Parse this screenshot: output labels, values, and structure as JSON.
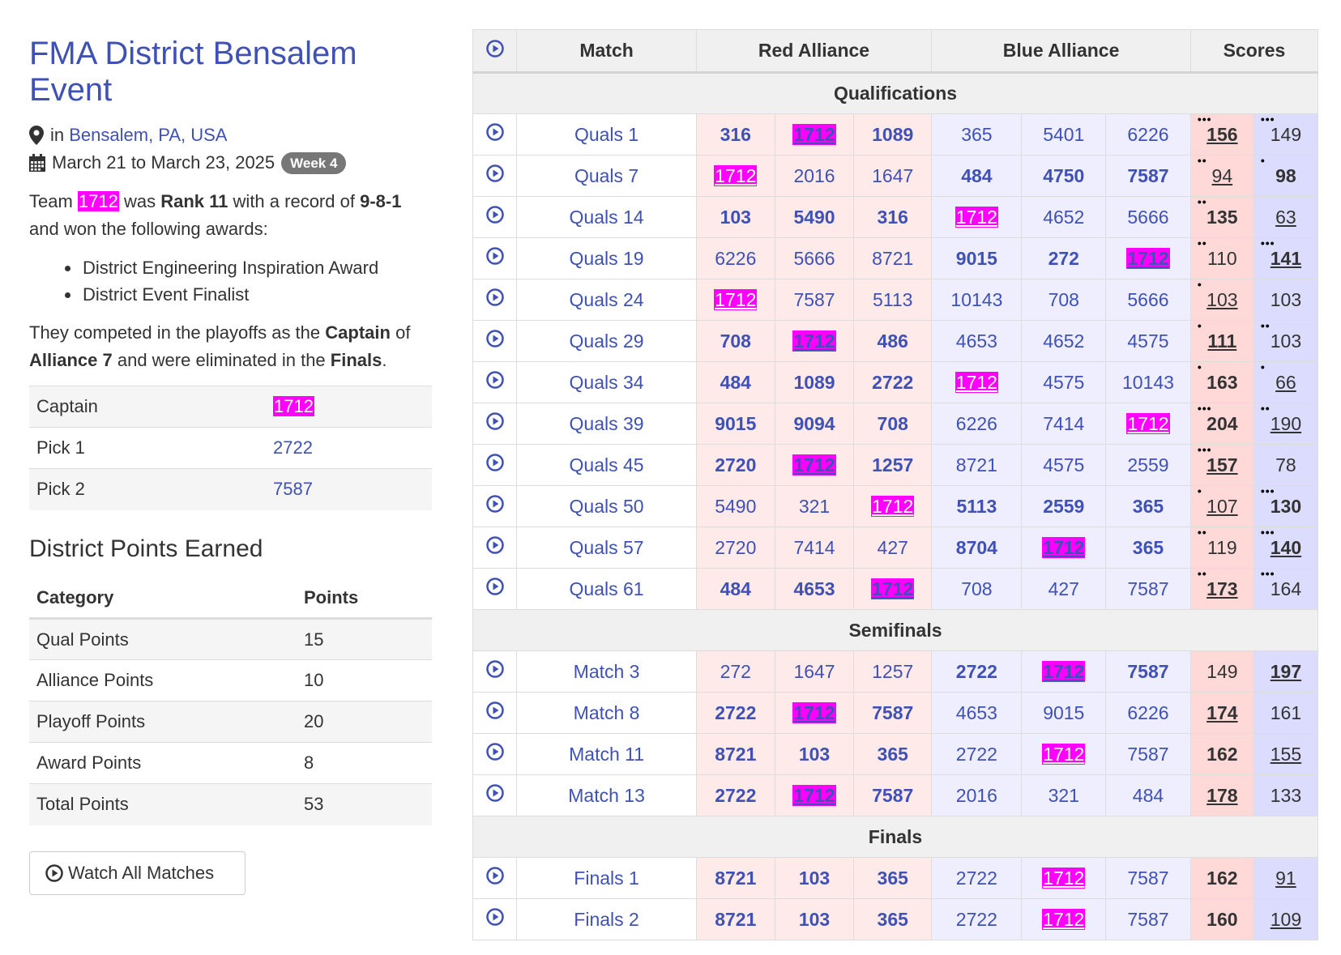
{
  "event": {
    "title": "FMA District Bensalem Event",
    "location_prefix": "in",
    "location": "Bensalem, PA, USA",
    "dates": "March 21 to March 23, 2025",
    "week_badge": "Week 4"
  },
  "summary": {
    "team_prefix": "Team",
    "team": "1712",
    "was": "was",
    "rank": "Rank 11",
    "record_prefix": "with a record of",
    "record": "9-8-1",
    "awards_intro": "and won the following awards:",
    "awards": [
      "District Engineering Inspiration Award",
      "District Event Finalist"
    ],
    "playoff_1": "They competed in the playoffs as the",
    "playoff_role": "Captain",
    "playoff_2": "of",
    "playoff_alliance": "Alliance 7",
    "playoff_3": "and were eliminated in the",
    "playoff_stage": "Finals",
    "playoff_end": "."
  },
  "alliance": [
    {
      "role": "Captain",
      "team": "1712",
      "highlight": true
    },
    {
      "role": "Pick 1",
      "team": "2722",
      "highlight": false
    },
    {
      "role": "Pick 2",
      "team": "7587",
      "highlight": false
    }
  ],
  "district_points": {
    "heading": "District Points Earned",
    "col_category": "Category",
    "col_points": "Points",
    "rows": [
      {
        "category": "Qual Points",
        "points": "15",
        "bold": false
      },
      {
        "category": "Alliance Points",
        "points": "10",
        "bold": false
      },
      {
        "category": "Playoff Points",
        "points": "20",
        "bold": false
      },
      {
        "category": "Award Points",
        "points": "8",
        "bold": false
      },
      {
        "category": "Total Points",
        "points": "53",
        "bold": true
      }
    ]
  },
  "watch_all_label": "Watch All Matches",
  "table_headers": {
    "match": "Match",
    "red": "Red Alliance",
    "blue": "Blue Alliance",
    "scores": "Scores"
  },
  "highlight_team": "1712",
  "sections": [
    {
      "name": "Qualifications",
      "matches": [
        {
          "name": "Quals 1",
          "red": [
            "316",
            "1712",
            "1089"
          ],
          "blue": [
            "365",
            "5401",
            "6226"
          ],
          "red_score": "156",
          "blue_score": "149",
          "winner": "red",
          "red_dots": 3,
          "blue_dots": 3
        },
        {
          "name": "Quals 7",
          "red": [
            "1712",
            "2016",
            "1647"
          ],
          "blue": [
            "484",
            "4750",
            "7587"
          ],
          "red_score": "94",
          "blue_score": "98",
          "winner": "blue",
          "red_dots": 2,
          "blue_dots": 1
        },
        {
          "name": "Quals 14",
          "red": [
            "103",
            "5490",
            "316"
          ],
          "blue": [
            "1712",
            "4652",
            "5666"
          ],
          "red_score": "135",
          "blue_score": "63",
          "winner": "red",
          "red_dots": 2,
          "blue_dots": 0
        },
        {
          "name": "Quals 19",
          "red": [
            "6226",
            "5666",
            "8721"
          ],
          "blue": [
            "9015",
            "272",
            "1712"
          ],
          "red_score": "110",
          "blue_score": "141",
          "winner": "blue",
          "red_dots": 2,
          "blue_dots": 3
        },
        {
          "name": "Quals 24",
          "red": [
            "1712",
            "7587",
            "5113"
          ],
          "blue": [
            "10143",
            "708",
            "5666"
          ],
          "red_score": "103",
          "blue_score": "103",
          "winner": "tie",
          "red_dots": 1,
          "blue_dots": 0
        },
        {
          "name": "Quals 29",
          "red": [
            "708",
            "1712",
            "486"
          ],
          "blue": [
            "4653",
            "4652",
            "4575"
          ],
          "red_score": "111",
          "blue_score": "103",
          "winner": "red",
          "red_dots": 1,
          "blue_dots": 2
        },
        {
          "name": "Quals 34",
          "red": [
            "484",
            "1089",
            "2722"
          ],
          "blue": [
            "1712",
            "4575",
            "10143"
          ],
          "red_score": "163",
          "blue_score": "66",
          "winner": "red",
          "red_dots": 1,
          "blue_dots": 1
        },
        {
          "name": "Quals 39",
          "red": [
            "9015",
            "9094",
            "708"
          ],
          "blue": [
            "6226",
            "7414",
            "1712"
          ],
          "red_score": "204",
          "blue_score": "190",
          "winner": "red",
          "red_dots": 3,
          "blue_dots": 2
        },
        {
          "name": "Quals 45",
          "red": [
            "2720",
            "1712",
            "1257"
          ],
          "blue": [
            "8721",
            "4575",
            "2559"
          ],
          "red_score": "157",
          "blue_score": "78",
          "winner": "red",
          "red_dots": 3,
          "blue_dots": 0
        },
        {
          "name": "Quals 50",
          "red": [
            "5490",
            "321",
            "1712"
          ],
          "blue": [
            "5113",
            "2559",
            "365"
          ],
          "red_score": "107",
          "blue_score": "130",
          "winner": "blue",
          "red_dots": 1,
          "blue_dots": 3
        },
        {
          "name": "Quals 57",
          "red": [
            "2720",
            "7414",
            "427"
          ],
          "blue": [
            "8704",
            "1712",
            "365"
          ],
          "red_score": "119",
          "blue_score": "140",
          "winner": "blue",
          "red_dots": 2,
          "blue_dots": 3
        },
        {
          "name": "Quals 61",
          "red": [
            "484",
            "4653",
            "1712"
          ],
          "blue": [
            "708",
            "427",
            "7587"
          ],
          "red_score": "173",
          "blue_score": "164",
          "winner": "red",
          "red_dots": 2,
          "blue_dots": 3
        }
      ]
    },
    {
      "name": "Semifinals",
      "matches": [
        {
          "name": "Match 3",
          "red": [
            "272",
            "1647",
            "1257"
          ],
          "blue": [
            "2722",
            "1712",
            "7587"
          ],
          "red_score": "149",
          "blue_score": "197",
          "winner": "blue",
          "red_dots": 0,
          "blue_dots": 0
        },
        {
          "name": "Match 8",
          "red": [
            "2722",
            "1712",
            "7587"
          ],
          "blue": [
            "4653",
            "9015",
            "6226"
          ],
          "red_score": "174",
          "blue_score": "161",
          "winner": "red",
          "red_dots": 0,
          "blue_dots": 0
        },
        {
          "name": "Match 11",
          "red": [
            "8721",
            "103",
            "365"
          ],
          "blue": [
            "2722",
            "1712",
            "7587"
          ],
          "red_score": "162",
          "blue_score": "155",
          "winner": "red",
          "red_dots": 0,
          "blue_dots": 0
        },
        {
          "name": "Match 13",
          "red": [
            "2722",
            "1712",
            "7587"
          ],
          "blue": [
            "2016",
            "321",
            "484"
          ],
          "red_score": "178",
          "blue_score": "133",
          "winner": "red",
          "red_dots": 0,
          "blue_dots": 0
        }
      ]
    },
    {
      "name": "Finals",
      "matches": [
        {
          "name": "Finals 1",
          "red": [
            "8721",
            "103",
            "365"
          ],
          "blue": [
            "2722",
            "1712",
            "7587"
          ],
          "red_score": "162",
          "blue_score": "91",
          "winner": "red",
          "red_dots": 0,
          "blue_dots": 0
        },
        {
          "name": "Finals 2",
          "red": [
            "8721",
            "103",
            "365"
          ],
          "blue": [
            "2722",
            "1712",
            "7587"
          ],
          "red_score": "160",
          "blue_score": "109",
          "winner": "red",
          "red_dots": 0,
          "blue_dots": 0
        }
      ]
    }
  ],
  "colors": {
    "link": "#3f51b5",
    "highlight": "#ff00ff",
    "red_team_bg": "#ffeaea",
    "blue_team_bg": "#eeeeff",
    "red_score_bg": "#ffd8d8",
    "blue_score_bg": "#dcdcff"
  },
  "icons": {
    "video": "play-circle-icon",
    "location": "map-marker-icon",
    "calendar": "calendar-icon"
  }
}
